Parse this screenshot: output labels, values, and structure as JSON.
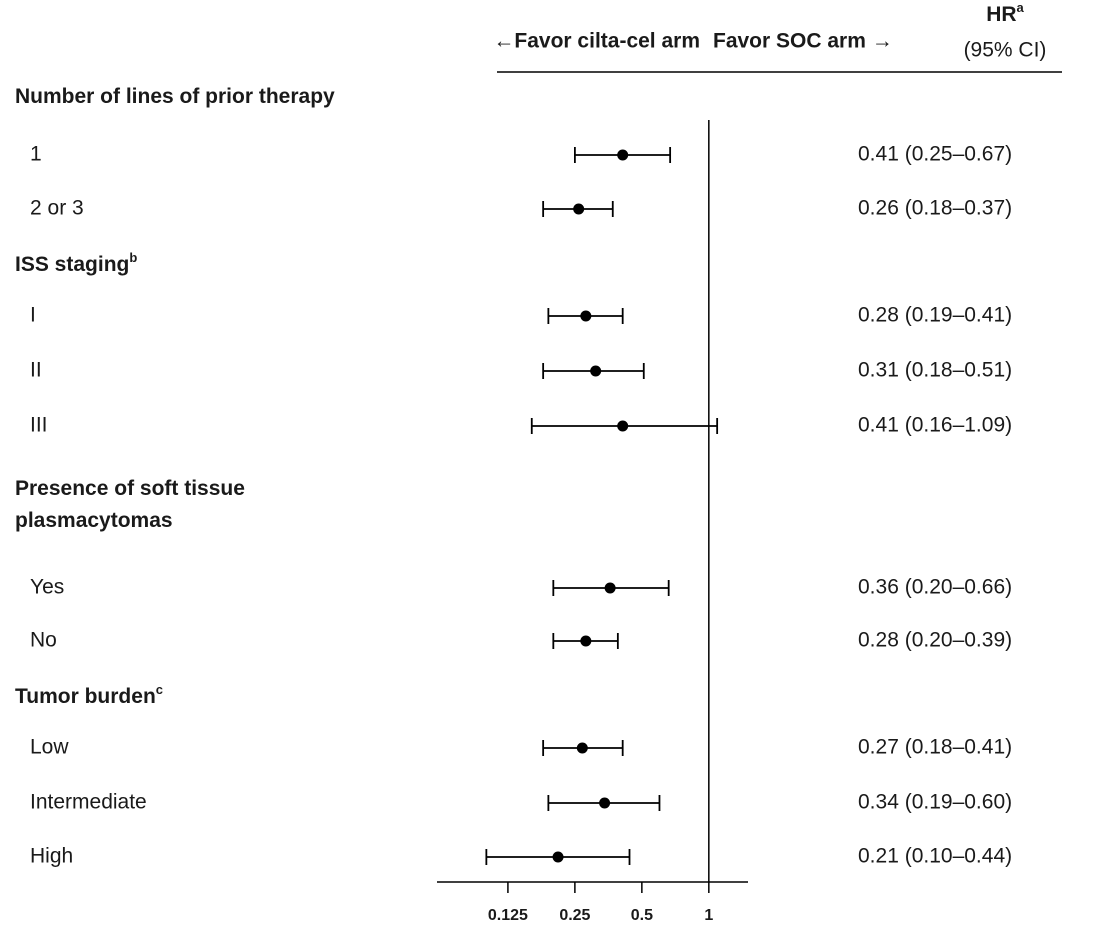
{
  "chart_data": {
    "type": "forest",
    "header": {
      "left": "←Favor cilta-cel arm",
      "left_color": "#e8211b",
      "right": "Favor SOC arm →",
      "stat": "HR",
      "stat_superscript": "a",
      "stat_sub": "(95% CI)"
    },
    "xscale": "log",
    "xlim": [
      0.06,
      1.5
    ],
    "xticks": [
      0.125,
      0.25,
      0.5,
      1
    ],
    "reference": 1,
    "groups": [
      {
        "title_lines": [
          "Number of lines of prior therapy"
        ],
        "superscript": null,
        "categories": [
          "1",
          "2 or 3"
        ],
        "values": [
          0.41,
          0.26
        ],
        "lower": [
          0.25,
          0.18
        ],
        "upper": [
          0.67,
          0.37
        ],
        "value_labels": [
          "0.41 (0.25–0.67)",
          "0.26 (0.18–0.37)"
        ]
      },
      {
        "title_lines": [
          "ISS staging"
        ],
        "superscript": "b",
        "categories": [
          "I",
          "II",
          "III"
        ],
        "values": [
          0.28,
          0.31,
          0.41
        ],
        "lower": [
          0.19,
          0.18,
          0.16
        ],
        "upper": [
          0.41,
          0.51,
          1.09
        ],
        "value_labels": [
          "0.28 (0.19–0.41)",
          "0.31 (0.18–0.51)",
          "0.41 (0.16–1.09)"
        ]
      },
      {
        "title_lines": [
          "Presence of soft tissue",
          "plasmacytomas"
        ],
        "superscript": null,
        "categories": [
          "Yes",
          "No"
        ],
        "values": [
          0.36,
          0.28
        ],
        "lower": [
          0.2,
          0.2
        ],
        "upper": [
          0.66,
          0.39
        ],
        "value_labels": [
          "0.36 (0.20–0.66)",
          "0.28 (0.20–0.39)"
        ]
      },
      {
        "title_lines": [
          "Tumor burden"
        ],
        "superscript": "c",
        "categories": [
          "Low",
          "Intermediate",
          "High"
        ],
        "values": [
          0.27,
          0.34,
          0.21
        ],
        "lower": [
          0.18,
          0.19,
          0.1
        ],
        "upper": [
          0.41,
          0.6,
          0.44
        ],
        "value_labels": [
          "0.27 (0.18–0.41)",
          "0.34 (0.19–0.60)",
          "0.21 (0.10–0.44)"
        ]
      }
    ]
  }
}
